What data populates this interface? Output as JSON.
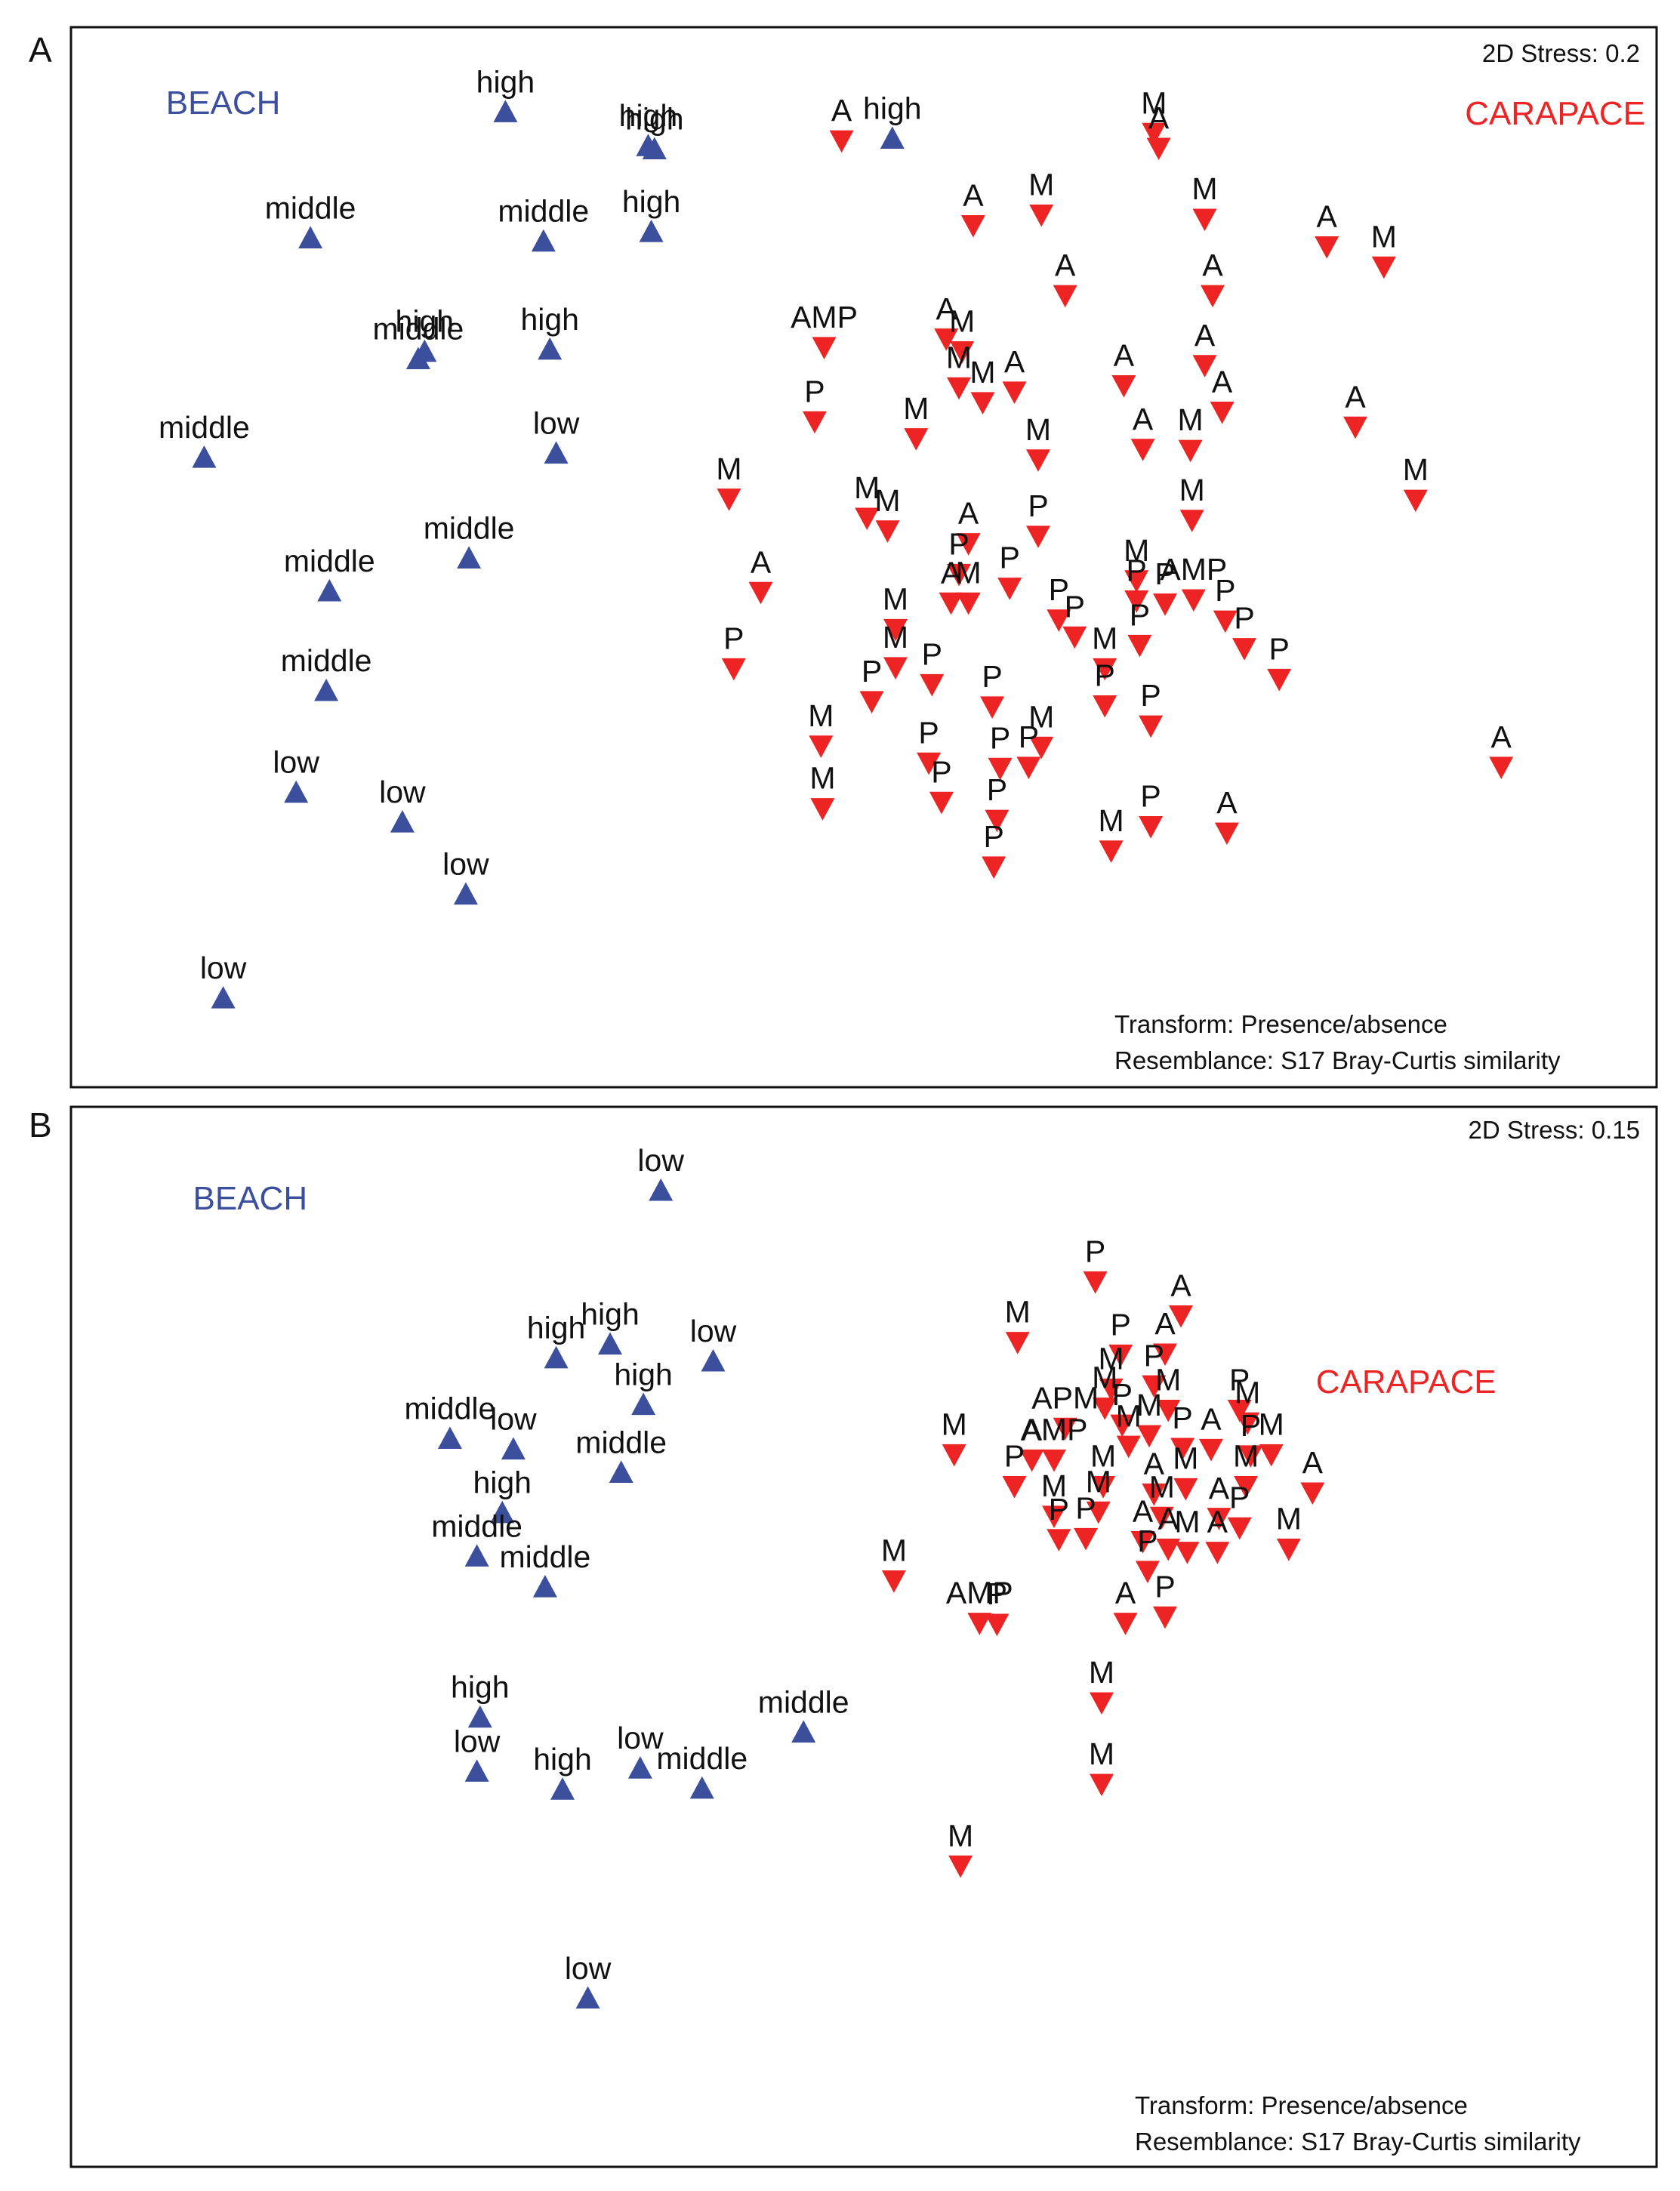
{
  "colors": {
    "beach": "#3c4f9c",
    "carapace": "#ee2424",
    "frame": "#111111"
  },
  "chart_data": [
    {
      "type": "scatter",
      "panel_label": "A",
      "stress_text": "2D Stress: 0.2",
      "transform_text": "Transform: Presence/absence",
      "resemblance_text": "Resemblance: S17 Bray-Curtis similarity",
      "xlim": [
        0,
        1000
      ],
      "ylim": [
        0,
        1000
      ],
      "groups": [
        {
          "name": "BEACH",
          "marker": "triangle-up",
          "color": "#3c4f9c",
          "label_pos": [
            96,
            918
          ]
        },
        {
          "name": "CARAPACE",
          "marker": "triangle-down",
          "color": "#ee2424",
          "label_pos": [
            936,
            908
          ]
        }
      ],
      "series": [
        {
          "name": "BEACH",
          "points": [
            {
              "x": 274,
              "y": 920,
              "label": "high"
            },
            {
              "x": 364,
              "y": 888,
              "label": "high"
            },
            {
              "x": 368,
              "y": 885,
              "label": "high"
            },
            {
              "x": 151,
              "y": 801,
              "label": "middle"
            },
            {
              "x": 298,
              "y": 798,
              "label": "middle"
            },
            {
              "x": 366,
              "y": 807,
              "label": "high"
            },
            {
              "x": 223,
              "y": 694,
              "label": "high"
            },
            {
              "x": 219,
              "y": 687,
              "label": "middle"
            },
            {
              "x": 302,
              "y": 696,
              "label": "high"
            },
            {
              "x": 84,
              "y": 594,
              "label": "middle"
            },
            {
              "x": 306,
              "y": 598,
              "label": "low"
            },
            {
              "x": 251,
              "y": 499,
              "label": "middle"
            },
            {
              "x": 163,
              "y": 468,
              "label": "middle"
            },
            {
              "x": 161,
              "y": 374,
              "label": "middle"
            },
            {
              "x": 142,
              "y": 278,
              "label": "low"
            },
            {
              "x": 209,
              "y": 250,
              "label": "low"
            },
            {
              "x": 249,
              "y": 182,
              "label": "low"
            },
            {
              "x": 96,
              "y": 84,
              "label": "low"
            },
            {
              "x": 518,
              "y": 895,
              "label": "high"
            }
          ]
        },
        {
          "name": "CARAPACE",
          "points": [
            {
              "x": 486,
              "y": 893,
              "label": "A"
            },
            {
              "x": 683,
              "y": 900,
              "label": "M"
            },
            {
              "x": 686,
              "y": 886,
              "label": "A"
            },
            {
              "x": 569,
              "y": 813,
              "label": "A"
            },
            {
              "x": 612,
              "y": 823,
              "label": "M"
            },
            {
              "x": 715,
              "y": 819,
              "label": "M"
            },
            {
              "x": 792,
              "y": 793,
              "label": "A"
            },
            {
              "x": 828,
              "y": 774,
              "label": "M"
            },
            {
              "x": 627,
              "y": 747,
              "label": "A"
            },
            {
              "x": 720,
              "y": 747,
              "label": "A"
            },
            {
              "x": 552,
              "y": 706,
              "label": "A"
            },
            {
              "x": 562,
              "y": 694,
              "label": "M"
            },
            {
              "x": 475,
              "y": 698,
              "label": "AMP"
            },
            {
              "x": 715,
              "y": 681,
              "label": "A"
            },
            {
              "x": 560,
              "y": 660,
              "label": "M"
            },
            {
              "x": 595,
              "y": 656,
              "label": "A"
            },
            {
              "x": 575,
              "y": 646,
              "label": "M"
            },
            {
              "x": 664,
              "y": 662,
              "label": "A"
            },
            {
              "x": 810,
              "y": 623,
              "label": "A"
            },
            {
              "x": 726,
              "y": 637,
              "label": "A"
            },
            {
              "x": 469,
              "y": 628,
              "label": "P"
            },
            {
              "x": 533,
              "y": 612,
              "label": "M"
            },
            {
              "x": 676,
              "y": 602,
              "label": "A"
            },
            {
              "x": 706,
              "y": 601,
              "label": "M"
            },
            {
              "x": 610,
              "y": 592,
              "label": "M"
            },
            {
              "x": 415,
              "y": 555,
              "label": "M"
            },
            {
              "x": 848,
              "y": 554,
              "label": "M"
            },
            {
              "x": 502,
              "y": 537,
              "label": "M"
            },
            {
              "x": 515,
              "y": 525,
              "label": "M"
            },
            {
              "x": 707,
              "y": 535,
              "label": "M"
            },
            {
              "x": 610,
              "y": 520,
              "label": "P"
            },
            {
              "x": 566,
              "y": 513,
              "label": "A"
            },
            {
              "x": 560,
              "y": 484,
              "label": "P"
            },
            {
              "x": 435,
              "y": 467,
              "label": "A"
            },
            {
              "x": 672,
              "y": 478,
              "label": "M"
            },
            {
              "x": 592,
              "y": 471,
              "label": "P"
            },
            {
              "x": 555,
              "y": 457,
              "label": "A"
            },
            {
              "x": 566,
              "y": 457,
              "label": "M"
            },
            {
              "x": 672,
              "y": 459,
              "label": "P"
            },
            {
              "x": 690,
              "y": 456,
              "label": "P"
            },
            {
              "x": 708,
              "y": 460,
              "label": "AMP"
            },
            {
              "x": 623,
              "y": 441,
              "label": "P"
            },
            {
              "x": 520,
              "y": 432,
              "label": "M"
            },
            {
              "x": 728,
              "y": 440,
              "label": "P"
            },
            {
              "x": 418,
              "y": 395,
              "label": "P"
            },
            {
              "x": 520,
              "y": 396,
              "label": "M"
            },
            {
              "x": 633,
              "y": 425,
              "label": "P"
            },
            {
              "x": 740,
              "y": 414,
              "label": "P"
            },
            {
              "x": 674,
              "y": 417,
              "label": "P"
            },
            {
              "x": 652,
              "y": 395,
              "label": "M"
            },
            {
              "x": 543,
              "y": 380,
              "label": "P"
            },
            {
              "x": 762,
              "y": 385,
              "label": "P"
            },
            {
              "x": 505,
              "y": 364,
              "label": "P"
            },
            {
              "x": 581,
              "y": 359,
              "label": "P"
            },
            {
              "x": 652,
              "y": 360,
              "label": "P"
            },
            {
              "x": 681,
              "y": 341,
              "label": "P"
            },
            {
              "x": 473,
              "y": 322,
              "label": "M"
            },
            {
              "x": 902,
              "y": 302,
              "label": "A"
            },
            {
              "x": 612,
              "y": 321,
              "label": "M"
            },
            {
              "x": 541,
              "y": 306,
              "label": "P"
            },
            {
              "x": 586,
              "y": 301,
              "label": "P"
            },
            {
              "x": 604,
              "y": 302,
              "label": "P"
            },
            {
              "x": 549,
              "y": 269,
              "label": "P"
            },
            {
              "x": 474,
              "y": 263,
              "label": "M"
            },
            {
              "x": 584,
              "y": 252,
              "label": "P"
            },
            {
              "x": 681,
              "y": 246,
              "label": "P"
            },
            {
              "x": 729,
              "y": 240,
              "label": "A"
            },
            {
              "x": 656,
              "y": 223,
              "label": "M"
            },
            {
              "x": 582,
              "y": 208,
              "label": "P"
            }
          ]
        }
      ]
    },
    {
      "type": "scatter",
      "panel_label": "B",
      "stress_text": "2D Stress: 0.15",
      "transform_text": "Transform: Presence/absence",
      "resemblance_text": "Resemblance: S17 Bray-Curtis similarity",
      "xlim": [
        0,
        1000
      ],
      "ylim": [
        0,
        1000
      ],
      "groups": [
        {
          "name": "BEACH",
          "marker": "triangle-up",
          "color": "#3c4f9c",
          "label_pos": [
            113,
            903
          ]
        },
        {
          "name": "CARAPACE",
          "marker": "triangle-down",
          "color": "#ee2424",
          "label_pos": [
            842,
            730
          ]
        }
      ],
      "series": [
        {
          "name": "BEACH",
          "points": [
            {
              "x": 372,
              "y": 921,
              "label": "low"
            },
            {
              "x": 340,
              "y": 776,
              "label": "high"
            },
            {
              "x": 306,
              "y": 763,
              "label": "high"
            },
            {
              "x": 405,
              "y": 760,
              "label": "low"
            },
            {
              "x": 361,
              "y": 719,
              "label": "high"
            },
            {
              "x": 239,
              "y": 687,
              "label": "middle"
            },
            {
              "x": 279,
              "y": 677,
              "label": "low"
            },
            {
              "x": 347,
              "y": 655,
              "label": "middle"
            },
            {
              "x": 272,
              "y": 617,
              "label": "high"
            },
            {
              "x": 256,
              "y": 576,
              "label": "middle"
            },
            {
              "x": 299,
              "y": 547,
              "label": "middle"
            },
            {
              "x": 258,
              "y": 424,
              "label": "high"
            },
            {
              "x": 256,
              "y": 373,
              "label": "low"
            },
            {
              "x": 310,
              "y": 356,
              "label": "high"
            },
            {
              "x": 359,
              "y": 376,
              "label": "low"
            },
            {
              "x": 398,
              "y": 357,
              "label": "middle"
            },
            {
              "x": 462,
              "y": 410,
              "label": "middle"
            },
            {
              "x": 326,
              "y": 159,
              "label": "low"
            }
          ]
        },
        {
          "name": "CARAPACE",
          "points": [
            {
              "x": 646,
              "y": 835,
              "label": "P"
            },
            {
              "x": 700,
              "y": 803,
              "label": "A"
            },
            {
              "x": 597,
              "y": 778,
              "label": "M"
            },
            {
              "x": 662,
              "y": 766,
              "label": "P"
            },
            {
              "x": 690,
              "y": 767,
              "label": "A"
            },
            {
              "x": 656,
              "y": 734,
              "label": "M"
            },
            {
              "x": 683,
              "y": 737,
              "label": "P"
            },
            {
              "x": 652,
              "y": 716,
              "label": "M"
            },
            {
              "x": 692,
              "y": 714,
              "label": "M"
            },
            {
              "x": 737,
              "y": 714,
              "label": "P"
            },
            {
              "x": 742,
              "y": 702,
              "label": "M"
            },
            {
              "x": 627,
              "y": 697,
              "label": "APM"
            },
            {
              "x": 663,
              "y": 700,
              "label": "P"
            },
            {
              "x": 680,
              "y": 690,
              "label": "M"
            },
            {
              "x": 557,
              "y": 672,
              "label": "M"
            },
            {
              "x": 606,
              "y": 667,
              "label": "A"
            },
            {
              "x": 620,
              "y": 667,
              "label": "AMP"
            },
            {
              "x": 667,
              "y": 680,
              "label": "M"
            },
            {
              "x": 701,
              "y": 678,
              "label": "P"
            },
            {
              "x": 719,
              "y": 677,
              "label": "A"
            },
            {
              "x": 744,
              "y": 671,
              "label": "P"
            },
            {
              "x": 757,
              "y": 672,
              "label": "M"
            },
            {
              "x": 595,
              "y": 642,
              "label": "P"
            },
            {
              "x": 651,
              "y": 642,
              "label": "M"
            },
            {
              "x": 683,
              "y": 635,
              "label": "A"
            },
            {
              "x": 703,
              "y": 640,
              "label": "M"
            },
            {
              "x": 741,
              "y": 642,
              "label": "M"
            },
            {
              "x": 783,
              "y": 636,
              "label": "A"
            },
            {
              "x": 620,
              "y": 614,
              "label": "M"
            },
            {
              "x": 648,
              "y": 618,
              "label": "M"
            },
            {
              "x": 688,
              "y": 613,
              "label": "M"
            },
            {
              "x": 724,
              "y": 612,
              "label": "A"
            },
            {
              "x": 737,
              "y": 603,
              "label": "P"
            },
            {
              "x": 623,
              "y": 592,
              "label": "P"
            },
            {
              "x": 640,
              "y": 593,
              "label": "P"
            },
            {
              "x": 676,
              "y": 590,
              "label": "A"
            },
            {
              "x": 692,
              "y": 583,
              "label": "A"
            },
            {
              "x": 768,
              "y": 583,
              "label": "M"
            },
            {
              "x": 704,
              "y": 580,
              "label": "M"
            },
            {
              "x": 723,
              "y": 580,
              "label": "A"
            },
            {
              "x": 679,
              "y": 562,
              "label": "P"
            },
            {
              "x": 519,
              "y": 553,
              "label": "M"
            },
            {
              "x": 573,
              "y": 513,
              "label": "AMP"
            },
            {
              "x": 584,
              "y": 512,
              "label": "P"
            },
            {
              "x": 665,
              "y": 513,
              "label": "A"
            },
            {
              "x": 690,
              "y": 519,
              "label": "P"
            },
            {
              "x": 650,
              "y": 438,
              "label": "M"
            },
            {
              "x": 650,
              "y": 361,
              "label": "M"
            },
            {
              "x": 561,
              "y": 284,
              "label": "M"
            }
          ]
        }
      ]
    }
  ]
}
